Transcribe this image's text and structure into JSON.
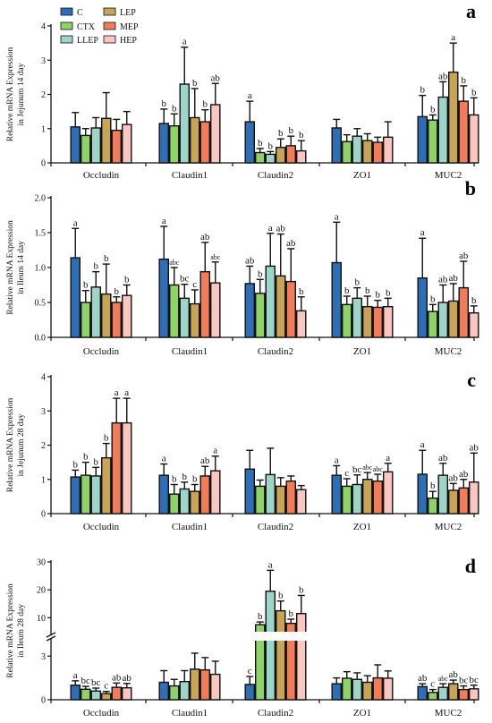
{
  "colors": {
    "C": "#2f6db5",
    "CTX": "#8fd16a",
    "LLEP": "#9fd4c8",
    "LEP": "#c8a45a",
    "MEP": "#ef7d5c",
    "HEP": "#f9c6c2"
  },
  "legend": [
    "C",
    "CTX",
    "LLEP",
    "LEP",
    "MEP",
    "HEP"
  ],
  "chart_data": [
    {
      "type": "bar",
      "panel": "a",
      "ylabel": [
        "Relative mRNA Expression",
        "in Jejunum 14 day"
      ],
      "ylim": [
        0,
        4
      ],
      "yticks": [
        "0",
        "1",
        "2",
        "3",
        "4"
      ],
      "categories": [
        "Occludin",
        "Claudin1",
        "Claudin2",
        "ZO1",
        "MUC2"
      ],
      "series": [
        {
          "name": "C",
          "values": [
            1.05,
            1.15,
            1.2,
            1.02,
            1.35
          ],
          "err": [
            0.42,
            0.42,
            0.6,
            0.25,
            0.62
          ],
          "sig": [
            "",
            "b",
            "a",
            "",
            "b"
          ]
        },
        {
          "name": "CTX",
          "values": [
            0.8,
            1.08,
            0.3,
            0.62,
            1.25
          ],
          "err": [
            0.2,
            0.35,
            0.12,
            0.2,
            0.15
          ],
          "sig": [
            "",
            "b",
            "b",
            "",
            "b"
          ]
        },
        {
          "name": "LLEP",
          "values": [
            1.02,
            2.3,
            0.25,
            0.78,
            1.92
          ],
          "err": [
            0.3,
            1.08,
            0.08,
            0.22,
            0.45
          ],
          "sig": [
            "",
            "a",
            "b",
            "",
            "ab"
          ]
        },
        {
          "name": "LEP",
          "values": [
            1.3,
            1.32,
            0.45,
            0.65,
            2.65
          ],
          "err": [
            0.75,
            0.85,
            0.25,
            0.2,
            0.85
          ],
          "sig": [
            "",
            "b",
            "b",
            "",
            "a"
          ]
        },
        {
          "name": "MEP",
          "values": [
            0.95,
            1.2,
            0.5,
            0.6,
            1.8
          ],
          "err": [
            0.32,
            0.35,
            0.28,
            0.15,
            0.45
          ],
          "sig": [
            "",
            "b",
            "b",
            "",
            "b"
          ]
        },
        {
          "name": "HEP",
          "values": [
            1.12,
            1.7,
            0.35,
            0.75,
            1.4
          ],
          "err": [
            0.38,
            0.62,
            0.3,
            0.45,
            0.5
          ],
          "sig": [
            "",
            "ab",
            "b",
            "",
            "b"
          ]
        }
      ]
    },
    {
      "type": "bar",
      "panel": "b",
      "ylabel": [
        "Relative mRNA Expression",
        "in Ileum 14 day"
      ],
      "ylim": [
        0,
        2.0
      ],
      "yticks": [
        "0.0",
        "0.5",
        "1.0",
        "1.5",
        "2.0"
      ],
      "categories": [
        "Occludin",
        "Claudin1",
        "Claudin2",
        "ZO1",
        "MUC2"
      ],
      "series": [
        {
          "name": "C",
          "values": [
            1.14,
            1.12,
            0.77,
            1.07,
            0.85
          ],
          "err": [
            0.42,
            0.47,
            0.25,
            0.58,
            0.57
          ],
          "sig": [
            "a",
            "a",
            "ab",
            "a",
            "a"
          ]
        },
        {
          "name": "CTX",
          "values": [
            0.5,
            0.75,
            0.63,
            0.47,
            0.37
          ],
          "err": [
            0.17,
            0.25,
            0.2,
            0.12,
            0.1
          ],
          "sig": [
            "b",
            "abc",
            "b",
            "b",
            "b"
          ]
        },
        {
          "name": "LLEP",
          "values": [
            0.72,
            0.56,
            1.02,
            0.56,
            0.5
          ],
          "err": [
            0.22,
            0.2,
            0.47,
            0.15,
            0.25
          ],
          "sig": [
            "b",
            "bc",
            "a",
            "b",
            "ab"
          ]
        },
        {
          "name": "LEP",
          "values": [
            0.62,
            0.48,
            0.88,
            0.44,
            0.52
          ],
          "err": [
            0.43,
            0.2,
            0.6,
            0.15,
            0.25
          ],
          "sig": [
            "b",
            "c",
            "ab",
            "b",
            "ab"
          ]
        },
        {
          "name": "MEP",
          "values": [
            0.5,
            0.94,
            0.8,
            0.43,
            0.71
          ],
          "err": [
            0.08,
            0.42,
            0.47,
            0.1,
            0.38
          ],
          "sig": [
            "b",
            "ab",
            "ab",
            "b",
            "ab"
          ]
        },
        {
          "name": "HEP",
          "values": [
            0.6,
            0.78,
            0.38,
            0.44,
            0.35
          ],
          "err": [
            0.15,
            0.3,
            0.2,
            0.12,
            0.1
          ],
          "sig": [
            "b",
            "abc",
            "b",
            "b",
            "b"
          ]
        }
      ]
    },
    {
      "type": "bar",
      "panel": "c",
      "ylabel": [
        "Relative mRNA Expression",
        "in Jejunum 28 day"
      ],
      "ylim": [
        0,
        4
      ],
      "yticks": [
        "0",
        "1",
        "2",
        "3",
        "4"
      ],
      "categories": [
        "Occludin",
        "Claudin1",
        "Claudin2",
        "ZO1",
        "MUC2"
      ],
      "series": [
        {
          "name": "C",
          "values": [
            1.07,
            1.12,
            1.3,
            1.12,
            1.15
          ],
          "err": [
            0.2,
            0.33,
            0.55,
            0.28,
            0.7
          ],
          "sig": [
            "b",
            "a",
            "",
            "a",
            "a"
          ]
        },
        {
          "name": "CTX",
          "values": [
            1.12,
            0.57,
            0.8,
            0.8,
            0.45
          ],
          "err": [
            0.38,
            0.28,
            0.18,
            0.22,
            0.2
          ],
          "sig": [
            "b",
            "b",
            "",
            "c",
            "b"
          ]
        },
        {
          "name": "LLEP",
          "values": [
            1.1,
            0.72,
            1.14,
            0.85,
            1.12
          ],
          "err": [
            0.25,
            0.2,
            0.77,
            0.28,
            0.35
          ],
          "sig": [
            "b",
            "b",
            "",
            "bc",
            "ab"
          ]
        },
        {
          "name": "LEP",
          "values": [
            1.63,
            0.65,
            0.8,
            1.0,
            0.68
          ],
          "err": [
            0.42,
            0.2,
            0.25,
            0.2,
            0.2
          ],
          "sig": [
            "b",
            "b",
            "",
            "abc",
            "ab"
          ]
        },
        {
          "name": "MEP",
          "values": [
            2.65,
            1.1,
            0.95,
            0.95,
            0.75
          ],
          "err": [
            0.72,
            0.28,
            0.15,
            0.2,
            0.25
          ],
          "sig": [
            "a",
            "ab",
            "",
            "abc",
            "ab"
          ]
        },
        {
          "name": "HEP",
          "values": [
            2.65,
            1.25,
            0.7,
            1.22,
            0.92
          ],
          "err": [
            0.72,
            0.43,
            0.12,
            0.25,
            0.85
          ],
          "sig": [
            "a",
            "a",
            "",
            "a",
            "ab"
          ]
        }
      ]
    },
    {
      "type": "bar",
      "panel": "d",
      "ylabel": [
        "Relative mRNA Expression",
        "in Ileum 28 day"
      ],
      "broken_axis": true,
      "lower_ylim": [
        0,
        4
      ],
      "lower_yticks": [
        "0",
        "3"
      ],
      "upper_ylim": [
        5,
        30
      ],
      "upper_yticks": [
        "10",
        "20",
        "30"
      ],
      "categories": [
        "Occludin",
        "Claudin1",
        "Claudin2",
        "ZO1",
        "MUC2"
      ],
      "series": [
        {
          "name": "C",
          "values": [
            1.0,
            1.2,
            1.05,
            1.1,
            0.9
          ],
          "err": [
            0.3,
            0.8,
            0.55,
            0.4,
            0.2
          ],
          "sig": [
            "a",
            "",
            "c",
            "",
            "ab"
          ]
        },
        {
          "name": "CTX",
          "values": [
            0.72,
            0.95,
            7.5,
            1.48,
            0.5
          ],
          "err": [
            0.2,
            0.45,
            1.0,
            0.45,
            0.2
          ],
          "sig": [
            "bc",
            "",
            "b",
            "",
            "c"
          ]
        },
        {
          "name": "LLEP",
          "values": [
            0.6,
            1.25,
            19.5,
            1.4,
            0.85
          ],
          "err": [
            0.2,
            0.75,
            7.5,
            0.45,
            0.25
          ],
          "sig": [
            "bc",
            "",
            "a",
            "",
            "abc"
          ]
        },
        {
          "name": "LEP",
          "values": [
            0.42,
            2.1,
            12.5,
            1.2,
            1.1
          ],
          "err": [
            0.15,
            1.1,
            3.5,
            0.45,
            0.25
          ],
          "sig": [
            "c",
            "",
            "b",
            "",
            "ab"
          ]
        },
        {
          "name": "MEP",
          "values": [
            0.85,
            2.05,
            8.0,
            1.5,
            0.7
          ],
          "err": [
            0.3,
            0.85,
            1.5,
            0.9,
            0.25
          ],
          "sig": [
            "ab",
            "",
            "b",
            "",
            "bc"
          ]
        },
        {
          "name": "HEP",
          "values": [
            0.82,
            1.75,
            11.5,
            1.48,
            0.75
          ],
          "err": [
            0.3,
            0.9,
            6.5,
            0.5,
            0.25
          ],
          "sig": [
            "ab",
            "",
            "b",
            "",
            "bc"
          ]
        }
      ]
    }
  ]
}
